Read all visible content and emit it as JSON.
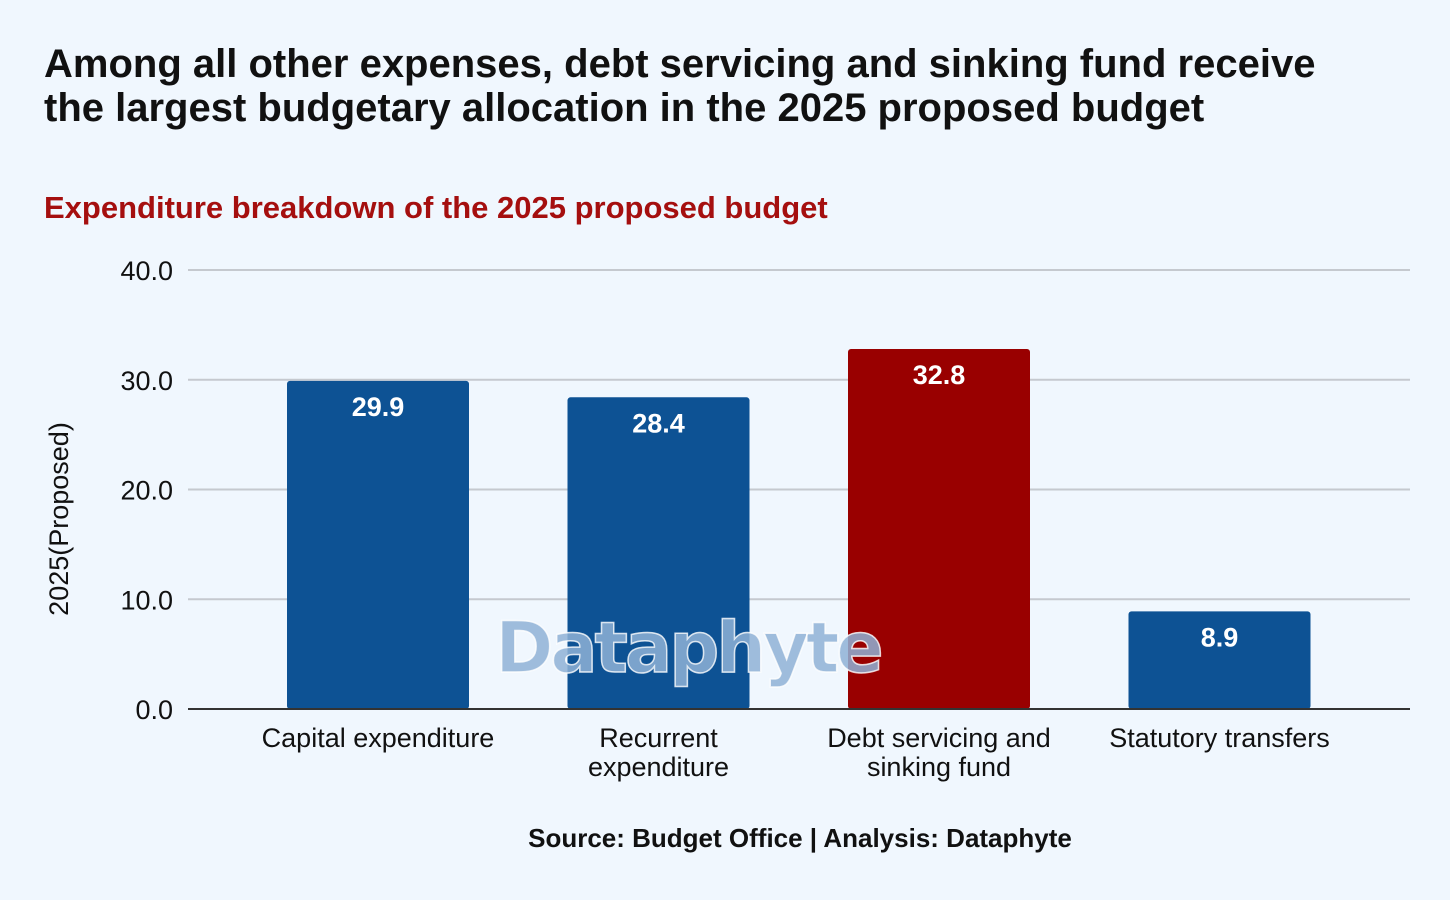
{
  "title": "Among all other expenses, debt servicing and sinking fund receive the largest budgetary allocation in the 2025 proposed budget",
  "subtitle": "Expenditure breakdown of the 2025 proposed budget",
  "source": "Source: Budget Office | Analysis: Dataphyte",
  "watermark": "Dataphyte",
  "colors": {
    "background": "#f0f7fe",
    "bar_default": "#0d5294",
    "bar_highlight": "#990000",
    "grid": "#c5c9cf",
    "axis": "#333333",
    "text": "#111111",
    "subtitle": "#a50f0f",
    "data_label": "#ffffff"
  },
  "chart_data": {
    "type": "bar",
    "categories": [
      [
        "Capital expenditure"
      ],
      [
        "Recurrent",
        "expenditure"
      ],
      [
        "Debt servicing and",
        "sinking fund"
      ],
      [
        "Statutory transfers"
      ]
    ],
    "values": [
      29.9,
      28.4,
      32.8,
      8.9
    ],
    "data_labels": [
      "29.9",
      "28.4",
      "32.8",
      "8.9"
    ],
    "highlight_index": 2,
    "ylabel": "2025(Proposed)",
    "xlabel": "",
    "ylim": [
      0,
      40
    ],
    "yticks": [
      0,
      10,
      20,
      30,
      40
    ],
    "ytick_labels": [
      "0.0",
      "10.0",
      "20.0",
      "30.0",
      "40.0"
    ],
    "grid": true,
    "legend": "none"
  }
}
